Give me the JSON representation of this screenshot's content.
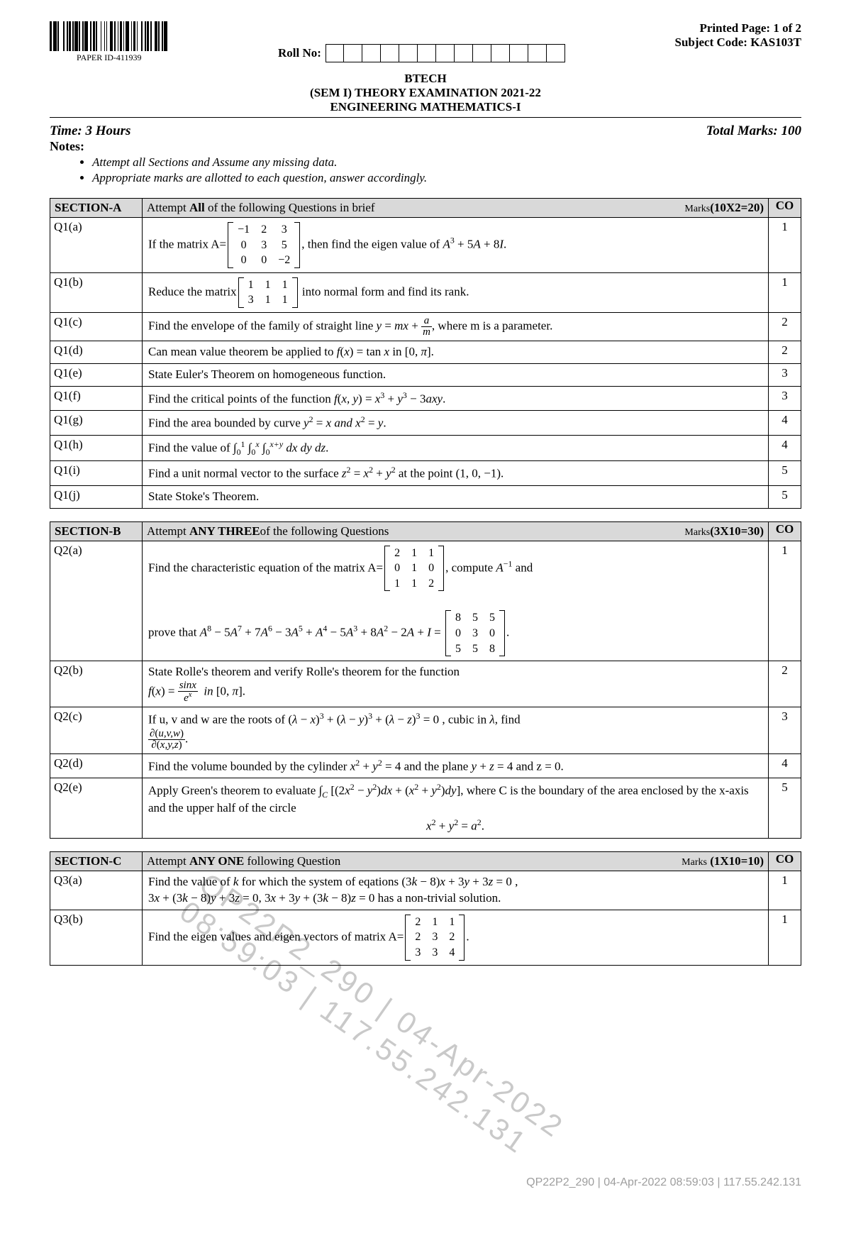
{
  "header": {
    "paper_id": "PAPER ID-411939",
    "printed_page": "Printed Page: 1 of 2",
    "subject_code": "Subject Code: KAS103T",
    "rollno_label": "Roll No:",
    "rollno_box_count": 13
  },
  "title": {
    "line1": "BTECH",
    "line2": "(SEM I) THEORY EXAMINATION 2021-22",
    "line3": "ENGINEERING MATHEMATICS-I"
  },
  "meta": {
    "time": "Time: 3 Hours",
    "marks": "Total Marks: 100",
    "notes_label": "Notes:",
    "notes": [
      "Attempt all Sections and Assume any missing data.",
      "Appropriate marks are allotted to each question, answer accordingly."
    ]
  },
  "sectionA": {
    "label": "SECTION-A",
    "desc_prefix": "Attempt ",
    "desc_bold": "All",
    "desc_suffix": " of the following Questions in brief",
    "marks_text": "Marks",
    "marks_value": "(10X2=20)",
    "co_label": "CO",
    "rows": [
      {
        "num": "Q1(a)",
        "co": "1",
        "html": "If the matrix A=<span class='matrix'><table><tr><td>−1</td><td>2</td><td>3</td></tr><tr><td>0</td><td>3</td><td>5</td></tr><tr><td>0</td><td>0</td><td>−2</td></tr></table></span>, then find the eigen value of  <i>A</i><sup>3</sup> + 5<i>A</i> + 8<i>I</i>."
      },
      {
        "num": "Q1(b)",
        "co": "1",
        "html": "Reduce the matrix<span class='matrix'><table><tr><td>1</td><td>1</td><td>1</td></tr><tr><td>3</td><td>1</td><td>1</td></tr></table></span> into normal form and find its rank."
      },
      {
        "num": "Q1(c)",
        "co": "2",
        "html": "Find the envelope of the family of straight line <i>y</i> = <i>mx</i> + <span class='frac'><span class='num'><i>a</i></span><span class='den'><i>m</i></span></span>, where m is a parameter."
      },
      {
        "num": "Q1(d)",
        "co": "2",
        "html": "Can mean value theorem be applied to <i>f</i>(<i>x</i>) = tan <i>x</i> in [0, <i>π</i>]."
      },
      {
        "num": "Q1(e)",
        "co": "3",
        "html": "State Euler's Theorem on homogeneous function."
      },
      {
        "num": "Q1(f)",
        "co": "3",
        "html": "Find the critical points of the function <i>f</i>(<i>x, y</i>) = <i>x</i><sup>3</sup> + <i>y</i><sup>3</sup> − 3<i>axy</i>."
      },
      {
        "num": "Q1(g)",
        "co": "4",
        "html": "Find the area bounded by curve <i>y</i><sup>2</sup> = <i>x and  x</i><sup>2</sup> = <i>y</i>."
      },
      {
        "num": "Q1(h)",
        "co": "4",
        "html": "Find the value of ∫<sub>0</sub><sup>1</sup> ∫<sub>0</sub><sup><i>x</i></sup> ∫<sub>0</sub><sup><i>x+y</i></sup> <i>dx dy dz</i>."
      },
      {
        "num": "Q1(i)",
        "co": "5",
        "html": "Find a unit normal vector to the surface <i>z</i><sup>2</sup> = <i>x</i><sup>2</sup> + <i>y</i><sup>2</sup> at the point (1, 0, −1)."
      },
      {
        "num": "Q1(j)",
        "co": "5",
        "html": "State Stoke's Theorem."
      }
    ]
  },
  "sectionB": {
    "label": "SECTION-B",
    "desc_prefix": "Attempt ",
    "desc_bold": "ANY THREE",
    "desc_suffix": "of the following Questions",
    "marks_text": "Marks",
    "marks_value": "(3X10=30)",
    "co_label": "CO",
    "rows": [
      {
        "num": "Q2(a)",
        "co": "1",
        "html": "Find the characteristic equation of the matrix A=<span class='matrix'><table><tr><td>2</td><td>1</td><td>1</td></tr><tr><td>0</td><td>1</td><td>0</td></tr><tr><td>1</td><td>1</td><td>2</td></tr></table></span>, compute <i>A</i><sup>−1</sup>  and<br><br>prove that <i>A</i><sup>8</sup> − 5<i>A</i><sup>7</sup> + 7<i>A</i><sup>6</sup> − 3<i>A</i><sup>5</sup> + <i>A</i><sup>4</sup> − 5<i>A</i><sup>3</sup> + 8<i>A</i><sup>2</sup> − 2<i>A</i> + <i>I</i> = <span class='matrix'><table><tr><td>8</td><td>5</td><td>5</td></tr><tr><td>0</td><td>3</td><td>0</td></tr><tr><td>5</td><td>5</td><td>8</td></tr></table></span>."
      },
      {
        "num": "Q2(b)",
        "co": "2",
        "html": "State Rolle's theorem and verify Rolle's theorem for the function<br><i>f</i>(<i>x</i>) = <span class='frac'><span class='num'><i>sinx</i></span><span class='den'><i>e<sup>x</sup></i></span></span>&nbsp; <i>in</i> [0, <i>π</i>]."
      },
      {
        "num": "Q2(c)",
        "co": "3",
        "html": "If u, v and w are the roots of (<i>λ</i> − <i>x</i>)<sup>3</sup> + (<i>λ</i> − <i>y</i>)<sup>3</sup> + (<i>λ</i> − <i>z</i>)<sup>3</sup> = 0 , cubic in <i>λ</i>, find<br><span class='frac'><span class='num'>∂(<i>u,v,w</i>)</span><span class='den'>∂(<i>x,y,z</i>)</span></span>."
      },
      {
        "num": "Q2(d)",
        "co": "4",
        "html": "Find the volume bounded by the cylinder <i>x</i><sup>2</sup> + <i>y</i><sup>2</sup> = 4 and the plane <i>y</i> + <i>z</i> = 4 and z = 0."
      },
      {
        "num": "Q2(e)",
        "co": "5",
        "html": "Apply Green's theorem to evaluate ∫<sub><i>C</i></sub> [(2<i>x</i><sup>2</sup> − <i>y</i><sup>2</sup>)<i>dx</i> + (<i>x</i><sup>2</sup> + <i>y</i><sup>2</sup>)<i>dy</i>], where C is the boundary of the area enclosed by the x-axis and the upper half of the circle<br><div style='text-align:center'><i>x</i><sup>2</sup> + <i>y</i><sup>2</sup> = <i>a</i><sup>2</sup>.</div>"
      }
    ]
  },
  "sectionC": {
    "label": "SECTION-C",
    "desc_prefix": "Attempt ",
    "desc_bold": "ANY ONE",
    "desc_suffix": " following Question",
    "marks_text": "Marks",
    "marks_value": "(1X10=10)",
    "co_label": "CO",
    "rows": [
      {
        "num": "Q3(a)",
        "co": "1",
        "html": "Find the value of <i>k</i> for which the system of eqations  (3<i>k</i> − 8)<i>x</i> + 3<i>y</i> + 3<i>z</i> = 0 ,<br>3<i>x</i> + (3<i>k</i> − 8)<i>y</i> + 3<i>z</i> = 0,  3<i>x</i> + 3<i>y</i> + (3<i>k</i> − 8)<i>z</i> = 0  has a non-trivial solution."
      },
      {
        "num": "Q3(b)",
        "co": "1",
        "html": "Find the eigen values and eigen vectors of matrix A=<span class='matrix'><table><tr><ViewById='m'><tr><td>2</td><td>1</td><td>1</td></tr><tr><td>2</td><td>3</td><td>2</td></tr><tr><td>3</td><td>3</td><td>4</td></tr></table></span>."
      }
    ]
  },
  "watermark": "QP22P2_290 | 04-Apr-2022 08:59:03 | 117.55.242.131",
  "footer": "QP22P2_290 | 04-Apr-2022 08:59:03 | 117.55.242.131",
  "barcode_widths": [
    2,
    1,
    3,
    1,
    1,
    4,
    1,
    2,
    1,
    1,
    2,
    1,
    1,
    1,
    3,
    1,
    1,
    2,
    1,
    1,
    3,
    2,
    1,
    1,
    2,
    1,
    1,
    3,
    1,
    2,
    1,
    1,
    1,
    2,
    3,
    1,
    1,
    2,
    1,
    1,
    2,
    1,
    1,
    1,
    3,
    2,
    1,
    1,
    2,
    1,
    1,
    3,
    1,
    2,
    1,
    1,
    2,
    1,
    1,
    3,
    2,
    1,
    1,
    2,
    1,
    1,
    3,
    1
  ]
}
